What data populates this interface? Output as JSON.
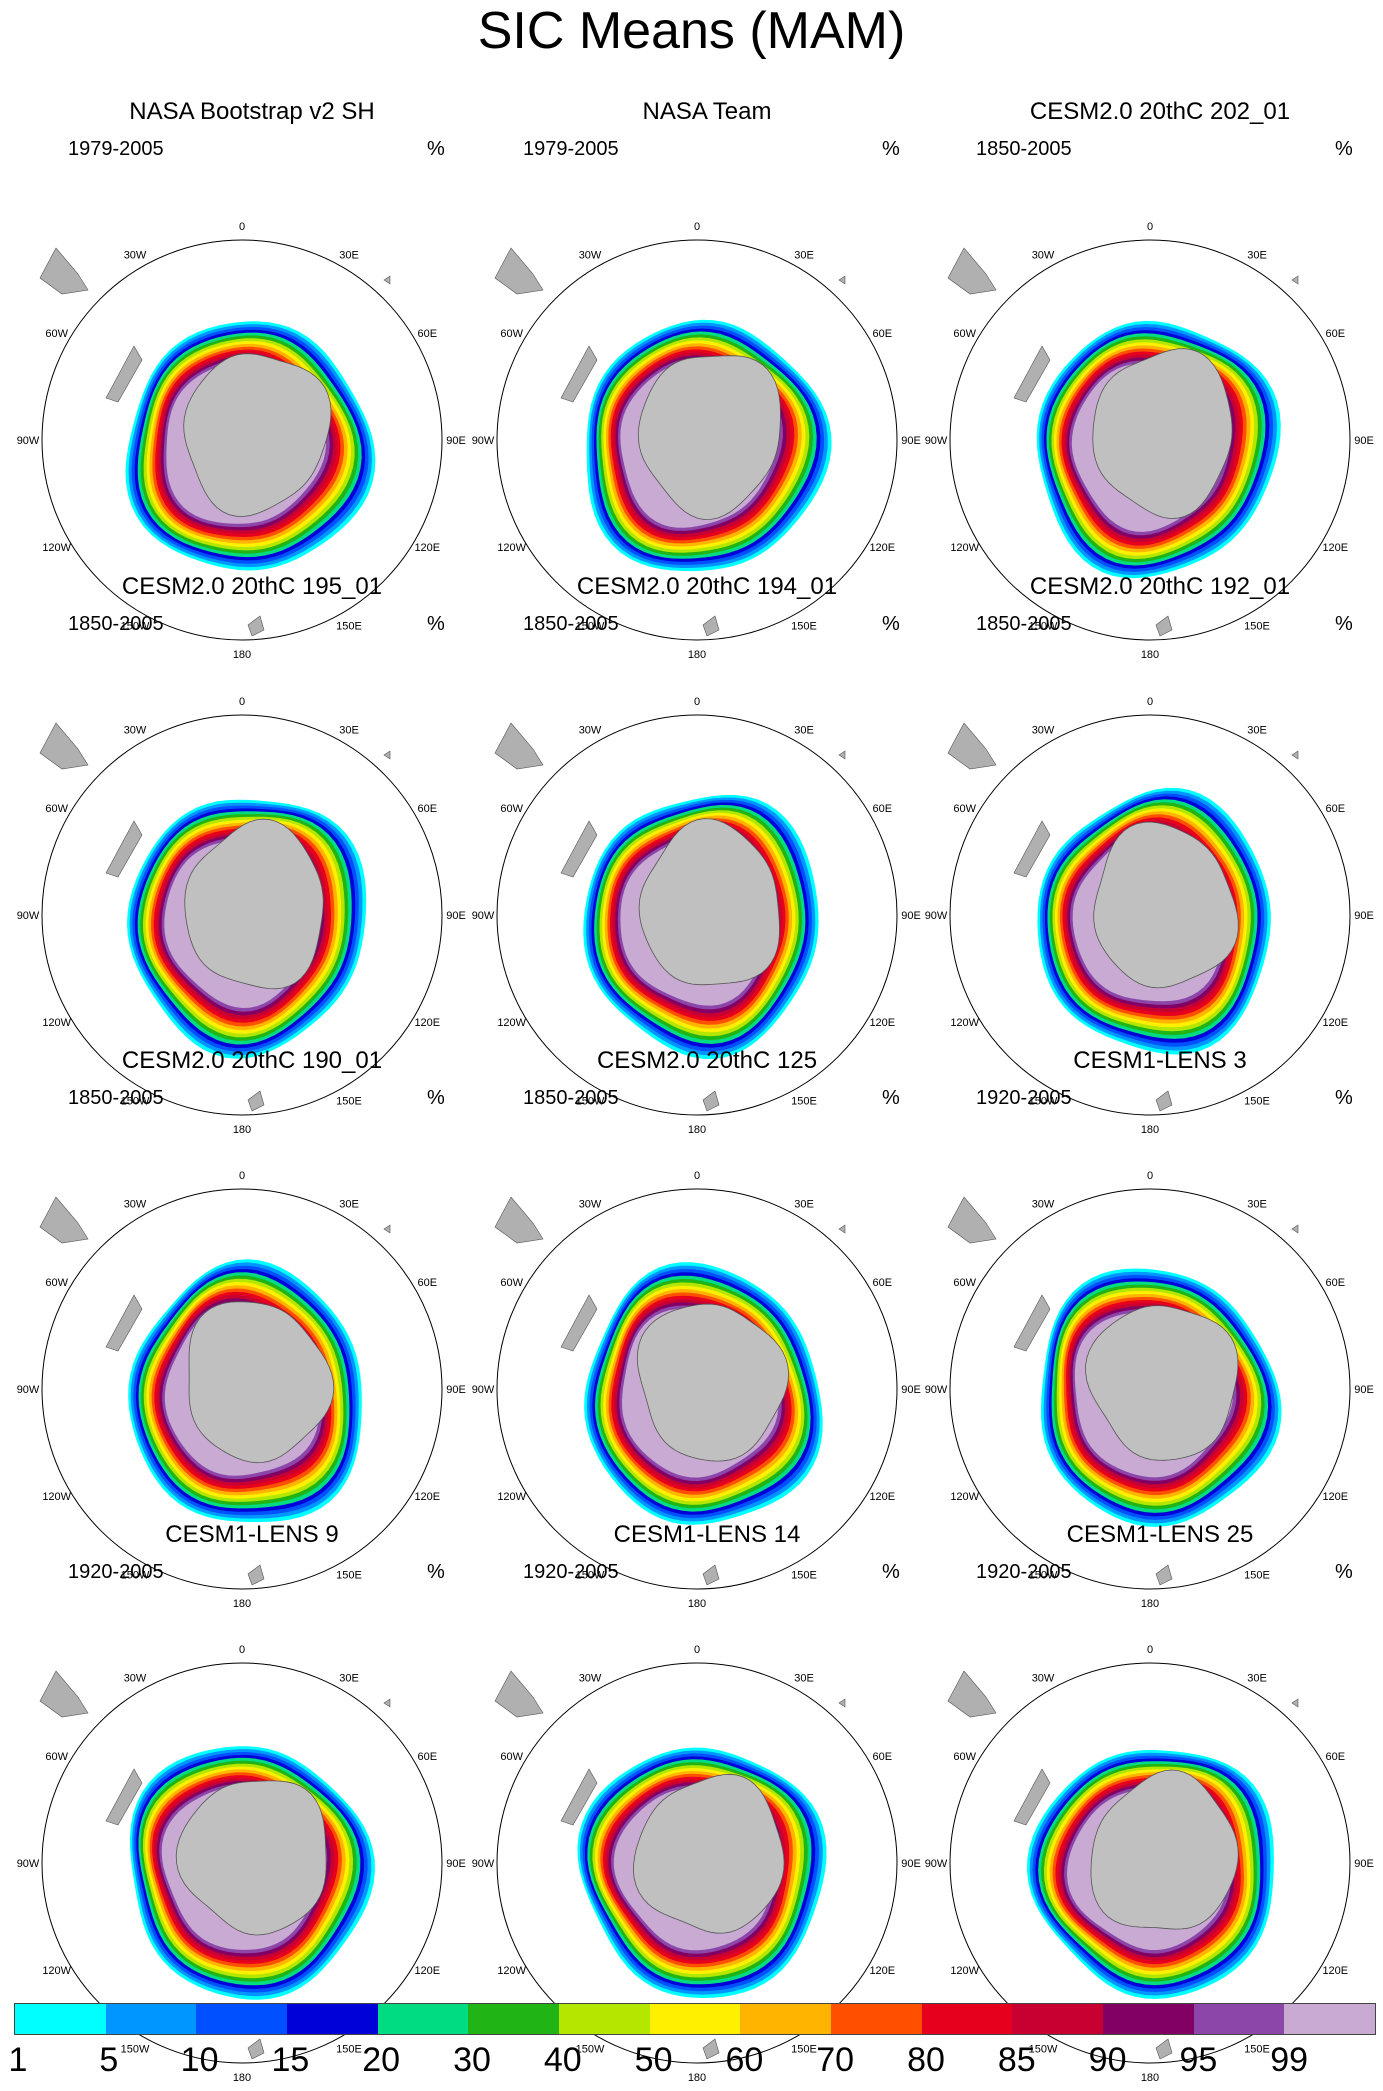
{
  "figure": {
    "title": "SIC Means (MAM)",
    "unit": "%",
    "longitude_labels": [
      "0",
      "30E",
      "60E",
      "90E",
      "120E",
      "150E",
      "180",
      "150W",
      "120W",
      "90W",
      "60W",
      "30W"
    ]
  },
  "panels": [
    {
      "title": "NASA Bootstrap v2 SH",
      "period": "1979-2005"
    },
    {
      "title": "NASA Team",
      "period": "1979-2005"
    },
    {
      "title": "CESM2.0 20thC 202_01",
      "period": "1850-2005"
    },
    {
      "title": "CESM2.0 20thC 195_01",
      "period": "1850-2005"
    },
    {
      "title": "CESM2.0 20thC 194_01",
      "period": "1850-2005"
    },
    {
      "title": "CESM2.0 20thC 192_01",
      "period": "1850-2005"
    },
    {
      "title": "CESM2.0 20thC 190_01",
      "period": "1850-2005"
    },
    {
      "title": "CESM2.0 20thC 125",
      "period": "1850-2005"
    },
    {
      "title": "CESM1-LENS 3",
      "period": "1920-2005"
    },
    {
      "title": "CESM1-LENS 9",
      "period": "1920-2005"
    },
    {
      "title": "CESM1-LENS 14",
      "period": "1920-2005"
    },
    {
      "title": "CESM1-LENS 25",
      "period": "1920-2005"
    }
  ],
  "colorbar": {
    "labels": [
      "1",
      "5",
      "10",
      "15",
      "20",
      "30",
      "40",
      "50",
      "60",
      "70",
      "80",
      "85",
      "90",
      "95",
      "99"
    ],
    "colors": [
      "#00ffff",
      "#0096ff",
      "#0050ff",
      "#0000d8",
      "#00dc82",
      "#20b414",
      "#b4e600",
      "#fff000",
      "#ffb400",
      "#ff5000",
      "#e6001e",
      "#c80032",
      "#820064",
      "#8c46aa",
      "#c8aad2"
    ]
  }
}
